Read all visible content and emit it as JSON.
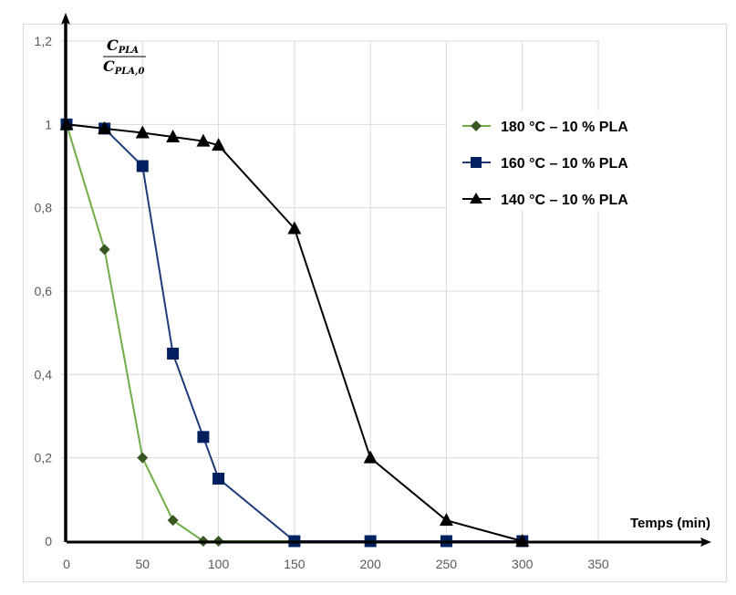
{
  "chart_data": {
    "type": "line",
    "title": "",
    "xlabel": "Temps (min)",
    "ylabel": {
      "numerator_main": "C",
      "numerator_sub": "PLA",
      "denominator_main": "C",
      "denominator_sub": "PLA,0"
    },
    "xlim": [
      0,
      350
    ],
    "ylim": [
      0,
      1.2
    ],
    "x_ticks": [
      {
        "value": 0,
        "label": "0"
      },
      {
        "value": 50,
        "label": "50"
      },
      {
        "value": 100,
        "label": "100"
      },
      {
        "value": 150,
        "label": "150"
      },
      {
        "value": 200,
        "label": "200"
      },
      {
        "value": 250,
        "label": "250"
      },
      {
        "value": 300,
        "label": "300"
      },
      {
        "value": 350,
        "label": "350"
      }
    ],
    "y_ticks": [
      {
        "value": 0,
        "label": "0"
      },
      {
        "value": 0.2,
        "label": "0,2"
      },
      {
        "value": 0.4,
        "label": "0,4"
      },
      {
        "value": 0.6,
        "label": "0,6"
      },
      {
        "value": 0.8,
        "label": "0,8"
      },
      {
        "value": 1,
        "label": "1"
      },
      {
        "value": 1.2,
        "label": "1,2"
      }
    ],
    "grid": true,
    "legend_position": "top-right",
    "series": [
      {
        "name": "180 °C – 10 % PLA",
        "marker": "diamond",
        "line_color": "#70AD47",
        "marker_color": "#385723",
        "x": [
          0,
          25,
          50,
          70,
          90,
          100,
          150
        ],
        "y": [
          1,
          0.7,
          0.2,
          0.05,
          0,
          0,
          0
        ]
      },
      {
        "name": "160 °C – 10 % PLA",
        "marker": "square",
        "line_color": "#1F3A7A",
        "marker_color": "#002060",
        "x": [
          0,
          25,
          50,
          70,
          90,
          100,
          150,
          200,
          250,
          300
        ],
        "y": [
          1,
          0.99,
          0.9,
          0.45,
          0.25,
          0.15,
          0,
          0,
          0,
          0
        ]
      },
      {
        "name": "140 °C – 10 % PLA",
        "marker": "triangle",
        "line_color": "#000000",
        "marker_color": "#000000",
        "x": [
          0,
          25,
          50,
          70,
          90,
          100,
          150,
          200,
          250,
          300
        ],
        "y": [
          1,
          0.99,
          0.98,
          0.97,
          0.96,
          0.95,
          0.75,
          0.2,
          0.05,
          0
        ]
      }
    ]
  }
}
